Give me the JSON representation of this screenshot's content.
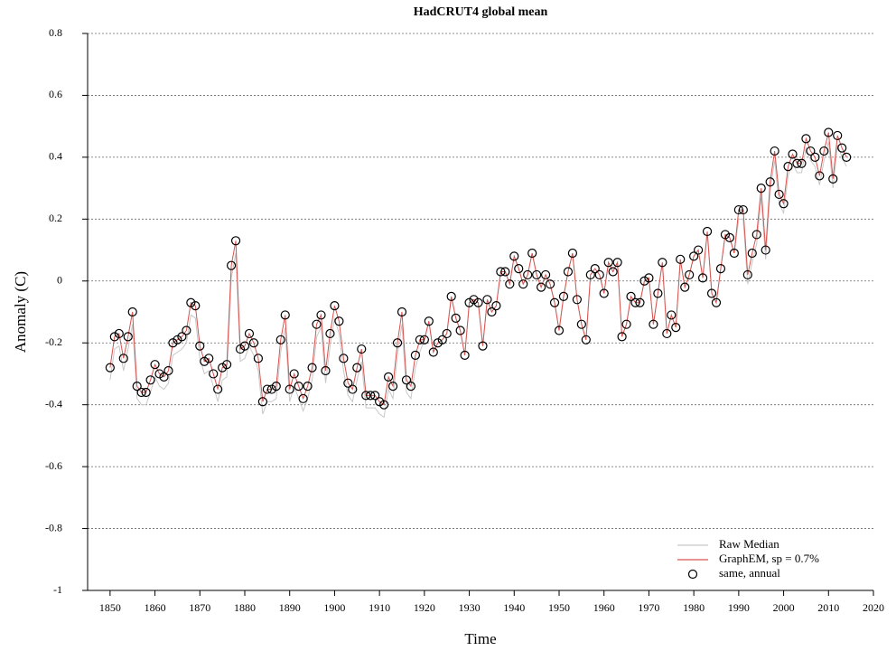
{
  "chart_data": {
    "type": "line",
    "title": "HadCRUT4 global mean",
    "xlabel": "Time",
    "ylabel": "Anomaly (C)",
    "xlim": [
      1845,
      2020
    ],
    "ylim": [
      -1,
      0.8
    ],
    "xticks": [
      1850,
      1860,
      1870,
      1880,
      1890,
      1900,
      1910,
      1920,
      1930,
      1940,
      1950,
      1960,
      1970,
      1980,
      1990,
      2000,
      2010,
      2020
    ],
    "yticks": [
      -1,
      -0.8,
      -0.6,
      -0.4,
      -0.2,
      0,
      0.2,
      0.4,
      0.6,
      0.8
    ],
    "grid": true,
    "legend": "lower right",
    "x": [
      1850,
      1851,
      1852,
      1853,
      1854,
      1855,
      1856,
      1857,
      1858,
      1859,
      1860,
      1861,
      1862,
      1863,
      1864,
      1865,
      1866,
      1867,
      1868,
      1869,
      1870,
      1871,
      1872,
      1873,
      1874,
      1875,
      1876,
      1877,
      1878,
      1879,
      1880,
      1881,
      1882,
      1883,
      1884,
      1885,
      1886,
      1887,
      1888,
      1889,
      1890,
      1891,
      1892,
      1893,
      1894,
      1895,
      1896,
      1897,
      1898,
      1899,
      1900,
      1901,
      1902,
      1903,
      1904,
      1905,
      1906,
      1907,
      1908,
      1909,
      1910,
      1911,
      1912,
      1913,
      1914,
      1915,
      1916,
      1917,
      1918,
      1919,
      1920,
      1921,
      1922,
      1923,
      1924,
      1925,
      1926,
      1927,
      1928,
      1929,
      1930,
      1931,
      1932,
      1933,
      1934,
      1935,
      1936,
      1937,
      1938,
      1939,
      1940,
      1941,
      1942,
      1943,
      1944,
      1945,
      1946,
      1947,
      1948,
      1949,
      1950,
      1951,
      1952,
      1953,
      1954,
      1955,
      1956,
      1957,
      1958,
      1959,
      1960,
      1961,
      1962,
      1963,
      1964,
      1965,
      1966,
      1967,
      1968,
      1969,
      1970,
      1971,
      1972,
      1973,
      1974,
      1975,
      1976,
      1977,
      1978,
      1979,
      1980,
      1981,
      1982,
      1983,
      1984,
      1985,
      1986,
      1987,
      1988,
      1989,
      1990,
      1991,
      1992,
      1993,
      1994,
      1995,
      1996,
      1997,
      1998,
      1999,
      2000,
      2001,
      2002,
      2003,
      2004,
      2005,
      2006,
      2007,
      2008,
      2009,
      2010,
      2011,
      2012,
      2013,
      2014
    ],
    "series": [
      {
        "name": "Raw Median",
        "color": "#c8c8c8",
        "style": "line",
        "values": [
          -0.32,
          -0.22,
          -0.21,
          -0.29,
          -0.22,
          -0.14,
          -0.38,
          -0.4,
          -0.4,
          -0.36,
          -0.31,
          -0.34,
          -0.35,
          -0.33,
          -0.24,
          -0.23,
          -0.22,
          -0.2,
          -0.11,
          -0.12,
          -0.25,
          -0.3,
          -0.29,
          -0.34,
          -0.39,
          -0.32,
          -0.31,
          0.01,
          0.09,
          -0.26,
          -0.25,
          -0.21,
          -0.24,
          -0.29,
          -0.43,
          -0.39,
          -0.39,
          -0.38,
          -0.23,
          -0.15,
          -0.39,
          -0.34,
          -0.38,
          -0.42,
          -0.38,
          -0.32,
          -0.18,
          -0.15,
          -0.33,
          -0.21,
          -0.12,
          -0.17,
          -0.29,
          -0.37,
          -0.39,
          -0.32,
          -0.26,
          -0.41,
          -0.41,
          -0.41,
          -0.43,
          -0.44,
          -0.35,
          -0.38,
          -0.24,
          -0.14,
          -0.36,
          -0.38,
          -0.28,
          -0.23,
          -0.19,
          -0.13,
          -0.23,
          -0.2,
          -0.19,
          -0.17,
          -0.05,
          -0.12,
          -0.16,
          -0.24,
          -0.07,
          -0.06,
          -0.07,
          -0.21,
          -0.06,
          -0.1,
          -0.08,
          0.03,
          0.03,
          -0.01,
          0.08,
          0.04,
          -0.01,
          0.02,
          0.09,
          0.02,
          -0.02,
          0.02,
          -0.01,
          -0.07,
          -0.16,
          -0.05,
          0.03,
          0.09,
          -0.06,
          -0.14,
          -0.19,
          0.02,
          0.04,
          0.02,
          -0.04,
          0.06,
          0.03,
          0.06,
          -0.18,
          -0.14,
          -0.05,
          -0.07,
          -0.07,
          0.0,
          0.01,
          -0.14,
          -0.04,
          0.06,
          -0.17,
          -0.11,
          -0.15,
          0.07,
          -0.02,
          0.02,
          0.08,
          0.1,
          0.01,
          0.16,
          -0.04,
          -0.07,
          0.04,
          0.15,
          0.14,
          0.09,
          0.2,
          0.2,
          -0.01,
          0.06,
          0.12,
          0.27,
          0.07,
          0.29,
          0.39,
          0.25,
          0.22,
          0.34,
          0.38,
          0.35,
          0.35,
          0.43,
          0.39,
          0.37,
          0.31,
          0.39,
          0.45,
          0.3,
          0.44,
          0.4,
          0.37
        ]
      },
      {
        "name": "GraphEM, sp = 0.7%",
        "color": "#d9534f",
        "style": "line",
        "values": [
          -0.28,
          -0.18,
          -0.17,
          -0.25,
          -0.18,
          -0.1,
          -0.34,
          -0.36,
          -0.36,
          -0.32,
          -0.27,
          -0.3,
          -0.31,
          -0.29,
          -0.2,
          -0.19,
          -0.18,
          -0.16,
          -0.07,
          -0.08,
          -0.21,
          -0.26,
          -0.25,
          -0.3,
          -0.35,
          -0.28,
          -0.27,
          0.05,
          0.13,
          -0.22,
          -0.21,
          -0.17,
          -0.2,
          -0.25,
          -0.39,
          -0.35,
          -0.35,
          -0.34,
          -0.19,
          -0.11,
          -0.35,
          -0.3,
          -0.34,
          -0.38,
          -0.34,
          -0.28,
          -0.14,
          -0.11,
          -0.29,
          -0.17,
          -0.08,
          -0.13,
          -0.25,
          -0.33,
          -0.35,
          -0.28,
          -0.22,
          -0.37,
          -0.37,
          -0.37,
          -0.39,
          -0.4,
          -0.31,
          -0.34,
          -0.2,
          -0.1,
          -0.32,
          -0.34,
          -0.24,
          -0.19,
          -0.19,
          -0.13,
          -0.23,
          -0.2,
          -0.19,
          -0.17,
          -0.05,
          -0.12,
          -0.16,
          -0.24,
          -0.07,
          -0.06,
          -0.07,
          -0.21,
          -0.06,
          -0.1,
          -0.08,
          0.03,
          0.03,
          -0.01,
          0.08,
          0.04,
          -0.01,
          0.02,
          0.09,
          0.02,
          -0.02,
          0.02,
          -0.01,
          -0.07,
          -0.16,
          -0.05,
          0.03,
          0.09,
          -0.06,
          -0.14,
          -0.19,
          0.02,
          0.04,
          0.02,
          -0.04,
          0.06,
          0.03,
          0.06,
          -0.18,
          -0.14,
          -0.05,
          -0.07,
          -0.07,
          0.0,
          0.01,
          -0.14,
          -0.04,
          0.06,
          -0.17,
          -0.11,
          -0.15,
          0.07,
          -0.02,
          0.02,
          0.08,
          0.1,
          0.01,
          0.16,
          -0.04,
          -0.07,
          0.04,
          0.15,
          0.14,
          0.09,
          0.23,
          0.23,
          0.02,
          0.09,
          0.15,
          0.3,
          0.1,
          0.32,
          0.42,
          0.28,
          0.25,
          0.37,
          0.41,
          0.38,
          0.38,
          0.46,
          0.42,
          0.4,
          0.34,
          0.42,
          0.48,
          0.33,
          0.47,
          0.43,
          0.4
        ]
      },
      {
        "name": "same, annual",
        "color": "#000000",
        "style": "circle",
        "values": [
          -0.28,
          -0.18,
          -0.17,
          -0.25,
          -0.18,
          -0.1,
          -0.34,
          -0.36,
          -0.36,
          -0.32,
          -0.27,
          -0.3,
          -0.31,
          -0.29,
          -0.2,
          -0.19,
          -0.18,
          -0.16,
          -0.07,
          -0.08,
          -0.21,
          -0.26,
          -0.25,
          -0.3,
          -0.35,
          -0.28,
          -0.27,
          0.05,
          0.13,
          -0.22,
          -0.21,
          -0.17,
          -0.2,
          -0.25,
          -0.39,
          -0.35,
          -0.35,
          -0.34,
          -0.19,
          -0.11,
          -0.35,
          -0.3,
          -0.34,
          -0.38,
          -0.34,
          -0.28,
          -0.14,
          -0.11,
          -0.29,
          -0.17,
          -0.08,
          -0.13,
          -0.25,
          -0.33,
          -0.35,
          -0.28,
          -0.22,
          -0.37,
          -0.37,
          -0.37,
          -0.39,
          -0.4,
          -0.31,
          -0.34,
          -0.2,
          -0.1,
          -0.32,
          -0.34,
          -0.24,
          -0.19,
          -0.19,
          -0.13,
          -0.23,
          -0.2,
          -0.19,
          -0.17,
          -0.05,
          -0.12,
          -0.16,
          -0.24,
          -0.07,
          -0.06,
          -0.07,
          -0.21,
          -0.06,
          -0.1,
          -0.08,
          0.03,
          0.03,
          -0.01,
          0.08,
          0.04,
          -0.01,
          0.02,
          0.09,
          0.02,
          -0.02,
          0.02,
          -0.01,
          -0.07,
          -0.16,
          -0.05,
          0.03,
          0.09,
          -0.06,
          -0.14,
          -0.19,
          0.02,
          0.04,
          0.02,
          -0.04,
          0.06,
          0.03,
          0.06,
          -0.18,
          -0.14,
          -0.05,
          -0.07,
          -0.07,
          0.0,
          0.01,
          -0.14,
          -0.04,
          0.06,
          -0.17,
          -0.11,
          -0.15,
          0.07,
          -0.02,
          0.02,
          0.08,
          0.1,
          0.01,
          0.16,
          -0.04,
          -0.07,
          0.04,
          0.15,
          0.14,
          0.09,
          0.23,
          0.23,
          0.02,
          0.09,
          0.15,
          0.3,
          0.1,
          0.32,
          0.42,
          0.28,
          0.25,
          0.37,
          0.41,
          0.38,
          0.38,
          0.46,
          0.42,
          0.4,
          0.34,
          0.42,
          0.48,
          0.33,
          0.47,
          0.43,
          0.4
        ]
      }
    ]
  }
}
